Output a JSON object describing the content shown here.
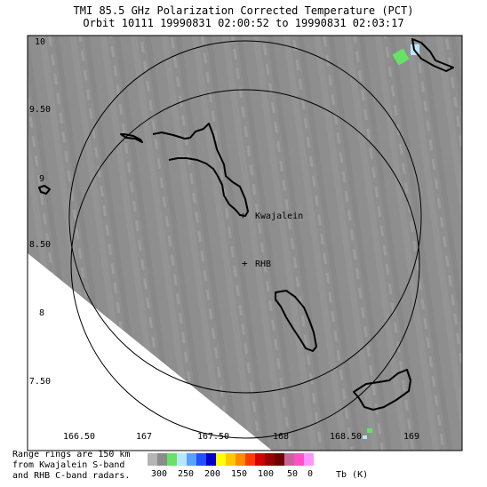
{
  "title": {
    "line1": "TMI 85.5 GHz Polarization Corrected Temperature (PCT)",
    "line2": "Orbit 10111 19990831 02:00:52 to 19990831 02:03:17"
  },
  "lat_labels": [
    "10",
    "9.50",
    "9",
    "8.50",
    "8",
    "7.50"
  ],
  "lon_labels": [
    "166.50",
    "167",
    "167.50",
    "168",
    "168.50",
    "169"
  ],
  "sites": {
    "kwajalein": "Kwajalein",
    "rhb": "RHB"
  },
  "site_markers": {
    "kwajalein": "+",
    "rhb": "+"
  },
  "note_lines": [
    "Range rings are 150 km",
    "from Kwajalein S-band",
    "and RHB C-band radars."
  ],
  "legend": {
    "unit_label": "Tb (K)",
    "ticks": [
      "300",
      "250",
      "200",
      "150",
      "100",
      "50",
      "0"
    ],
    "colors": [
      "#b4b4b4",
      "#8c8c8c",
      "#66e266",
      "#b8e6ff",
      "#5aa0ff",
      "#2050ff",
      "#0000c8",
      "#ffff00",
      "#ffc800",
      "#ff8c00",
      "#ff3c00",
      "#d20000",
      "#960000",
      "#6e0000",
      "#c8649c",
      "#ff50c8",
      "#ff96ff"
    ]
  },
  "colors": {
    "swath": "#8e8e8e",
    "island": "#000000",
    "ring": "#000000"
  }
}
